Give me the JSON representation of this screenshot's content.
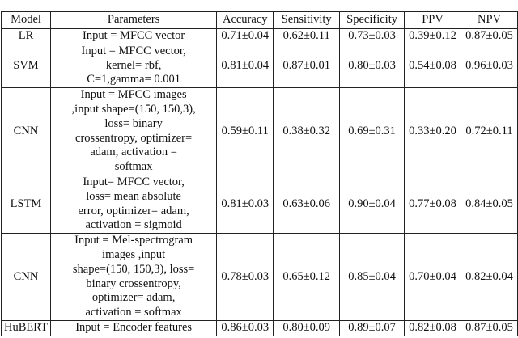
{
  "table": {
    "headers": [
      "Model",
      "Parameters",
      "Accuracy",
      "Sensitivity",
      "Specificity",
      "PPV",
      "NPV"
    ],
    "rows": [
      {
        "model": "LR",
        "params": [
          "Input = MFCC vector"
        ],
        "values": [
          "0.71±0.04",
          "0.62±0.11",
          "0.73±0.03",
          "0.39±0.12",
          "0.87±0.05"
        ]
      },
      {
        "model": "SVM",
        "params": [
          "Input = MFCC vector,",
          "kernel= rbf,",
          "C=1,gamma= 0.001"
        ],
        "values": [
          "0.81±0.04",
          "0.87±0.01",
          "0.80±0.03",
          "0.54±0.08",
          "0.96±0.03"
        ]
      },
      {
        "model": "CNN",
        "params": [
          "Input = MFCC images",
          ",input shape=(150, 150,3),",
          "loss= binary",
          "crossentropy, optimizer=",
          "adam, activation =",
          "softmax"
        ],
        "values": [
          "0.59±0.11",
          "0.38±0.32",
          "0.69±0.31",
          "0.33±0.20",
          "0.72±0.11"
        ]
      },
      {
        "model": "LSTM",
        "params": [
          "Input= MFCC vector,",
          "loss= mean absolute",
          "error, optimizer= adam,",
          "activation = sigmoid"
        ],
        "values": [
          "0.81±0.03",
          "0.63±0.06",
          "0.90±0.04",
          "0.77±0.08",
          "0.84±0.05"
        ]
      },
      {
        "model": "CNN",
        "params": [
          "Input = Mel-spectrogram",
          "images ,input",
          "shape=(150, 150,3), loss=",
          "binary crossentropy,",
          "optimizer= adam,",
          "activation = softmax"
        ],
        "values": [
          "0.78±0.03",
          "0.65±0.12",
          "0.85±0.04",
          "0.70±0.04",
          "0.82±0.04"
        ]
      },
      {
        "model": "HuBERT",
        "params": [
          "Input = Encoder features"
        ],
        "values": [
          "0.86±0.03",
          "0.80±0.09",
          "0.89±0.07",
          "0.82±0.08",
          "0.87±0.05"
        ]
      }
    ]
  }
}
